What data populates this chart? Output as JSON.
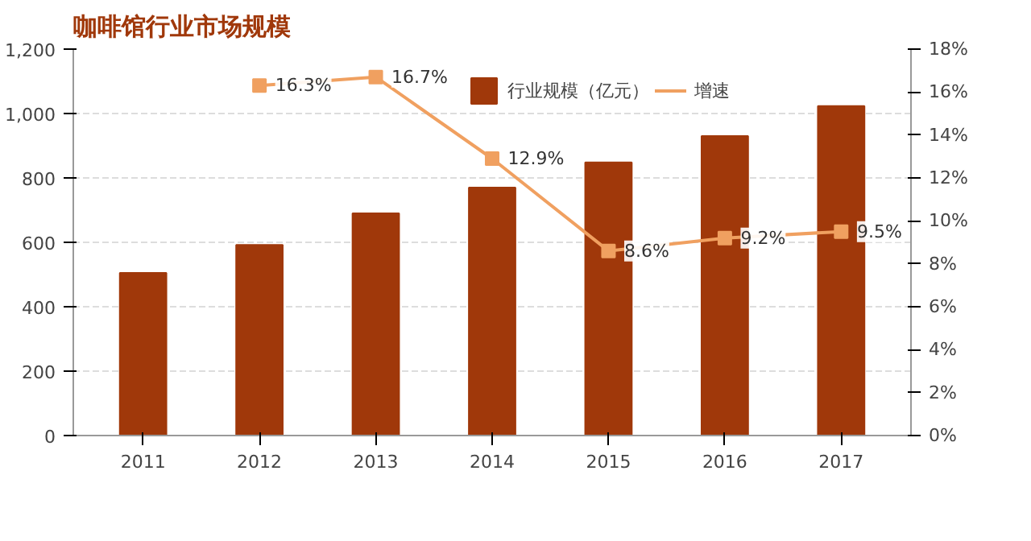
{
  "chart_data": {
    "type": "bar",
    "title": "咖啡馆行业市场规模",
    "categories": [
      "2011",
      "2012",
      "2013",
      "2014",
      "2015",
      "2016",
      "2017"
    ],
    "series": [
      {
        "name": "行业规模（亿元）",
        "color": "#a0380a",
        "values": [
          505,
          592,
          690,
          770,
          848,
          930,
          1023
        ]
      },
      {
        "name": "增速",
        "type": "line",
        "axis": "y2",
        "color": "#f0a060",
        "marker": "square",
        "values": [
          null,
          16.3,
          16.7,
          12.9,
          8.6,
          9.2,
          9.5
        ],
        "value_labels": [
          null,
          "16.3%",
          "16.7%",
          "12.9%",
          "8.6%",
          "9.2%",
          "9.5%"
        ]
      }
    ],
    "ylim": [
      0,
      1200
    ],
    "yticks": [
      0,
      {
        "value": 200,
        "label": "200"
      },
      {
        "value": 400,
        "label": "400"
      },
      {
        "value": 600,
        "label": "600"
      },
      {
        "value": 800,
        "label": "800"
      },
      {
        "value": 1000,
        "label": "1,000"
      },
      {
        "value": 1200,
        "label": "1,200"
      }
    ],
    "y2lim": [
      0,
      18
    ],
    "y2ticks": [
      {
        "value": 0,
        "label": "0%"
      },
      {
        "value": 2,
        "label": "2%"
      },
      {
        "value": 4,
        "label": "4%"
      },
      {
        "value": 6,
        "label": "6%"
      },
      {
        "value": 8,
        "label": "8%"
      },
      {
        "value": 10,
        "label": "10%"
      },
      {
        "value": 12,
        "label": "12%"
      },
      {
        "value": 14,
        "label": "14%"
      },
      {
        "value": 16,
        "label": "16%"
      },
      {
        "value": 18,
        "label": "18%"
      }
    ],
    "grid": "y",
    "legend": "top"
  }
}
